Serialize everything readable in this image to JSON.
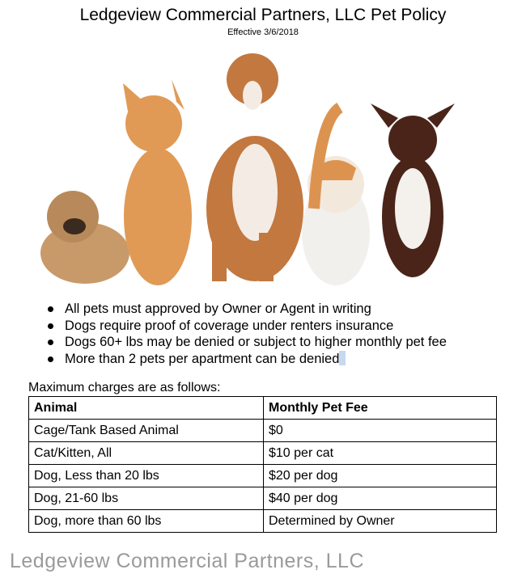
{
  "header": {
    "title": "Ledgeview Commercial Partners, LLC Pet Policy",
    "effective": "Effective 3/6/2018"
  },
  "image": {
    "subject": "pets-photo"
  },
  "rules": [
    "All pets must approved by Owner or Agent in writing",
    "Dogs require proof of coverage under renters insurance",
    "Dogs 60+ lbs may be denied or subject to higher monthly pet fee",
    "More than 2 pets per apartment can be denied"
  ],
  "intro": "Maximum charges are as follows:",
  "table": {
    "headers": [
      "Animal",
      "Monthly Pet Fee"
    ],
    "rows": [
      [
        "Cage/Tank Based Animal",
        "$0"
      ],
      [
        "Cat/Kitten, All",
        "$10 per cat"
      ],
      [
        "Dog, Less than 20 lbs",
        "$20 per dog"
      ],
      [
        "Dog, 21-60 lbs",
        "$40 per dog"
      ],
      [
        "Dog, more than 60 lbs",
        "Determined by Owner"
      ]
    ]
  },
  "watermark": "Ledgeview Commercial Partners, LLC"
}
